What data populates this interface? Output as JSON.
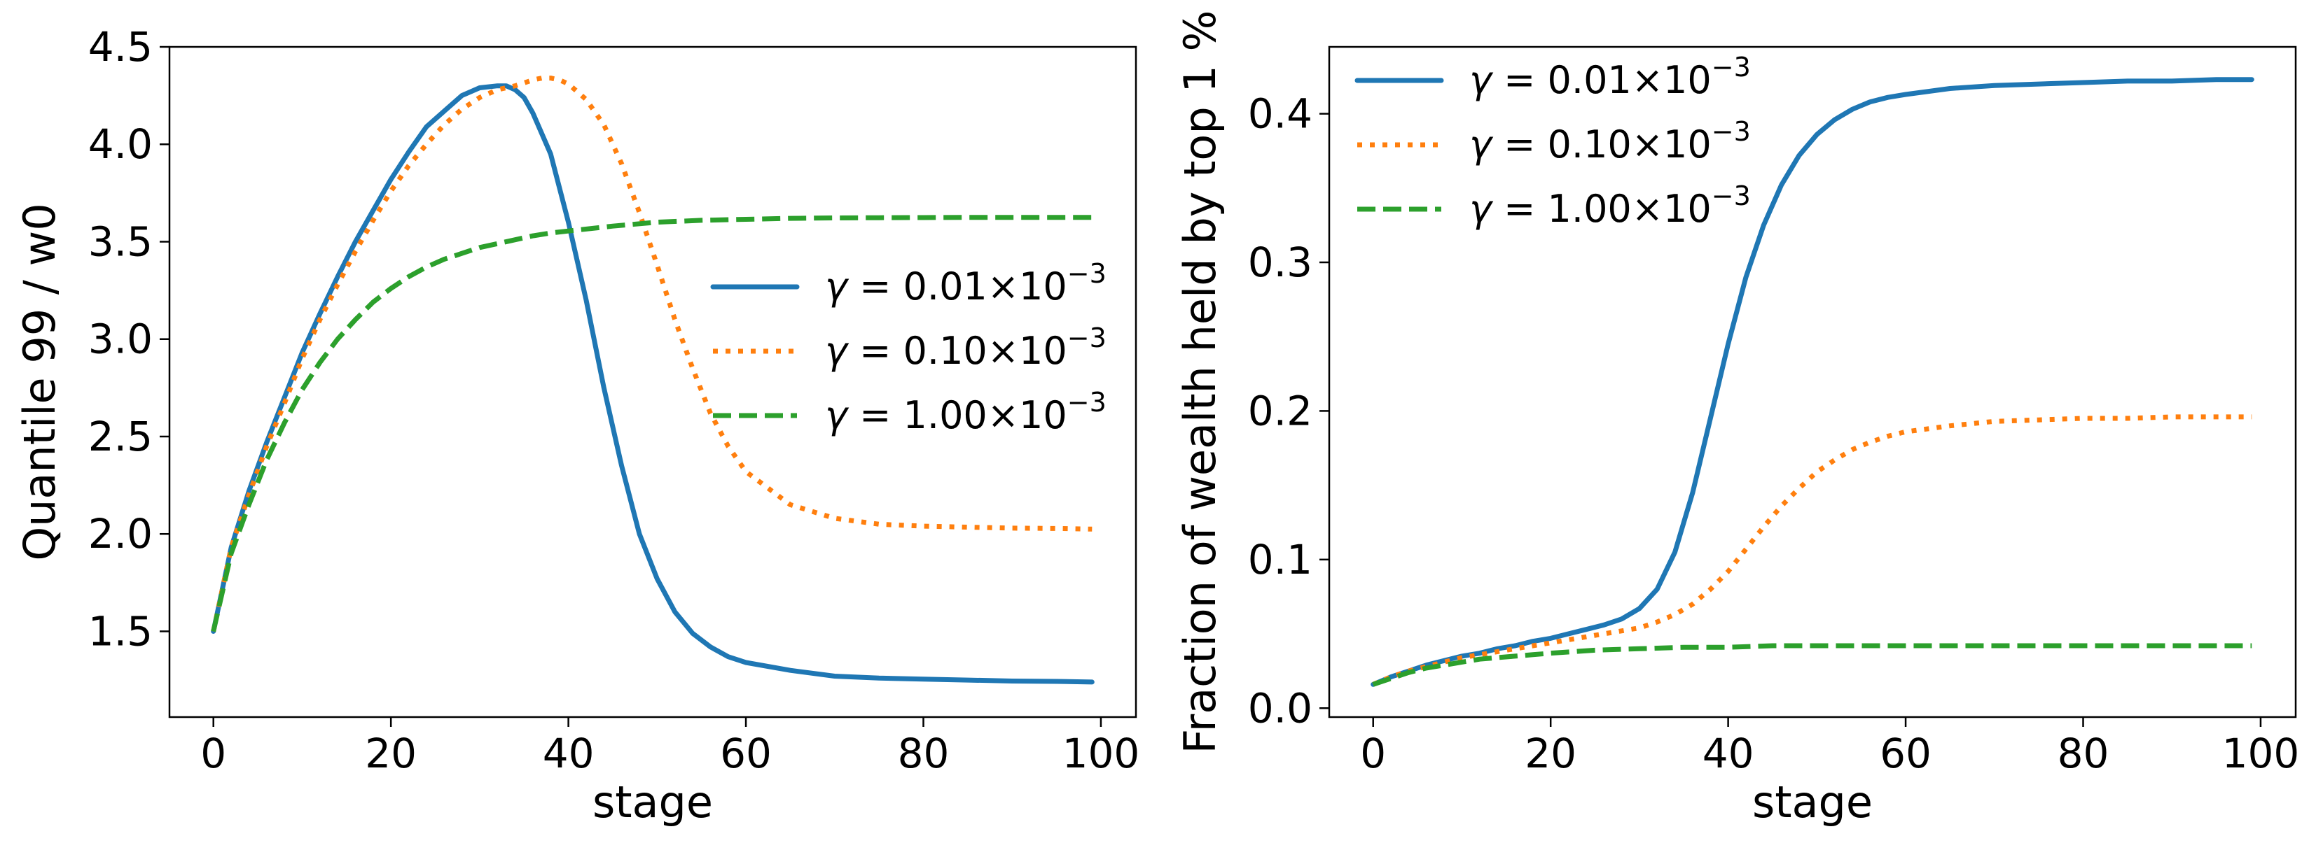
{
  "chart_data": [
    {
      "type": "line",
      "title": "",
      "xlabel": "stage",
      "ylabel": "Quantile 99 / w0",
      "xlim": [
        -4.95,
        103.95
      ],
      "ylim": [
        1.06,
        4.5
      ],
      "xticks": [
        0,
        20,
        40,
        60,
        80,
        100
      ],
      "xtick_labels": [
        "0",
        "20",
        "40",
        "60",
        "80",
        "100"
      ],
      "yticks": [
        1.5,
        2.0,
        2.5,
        3.0,
        3.5,
        4.0,
        4.5
      ],
      "ytick_labels": [
        "1.5",
        "2.0",
        "2.5",
        "3.0",
        "3.5",
        "4.0",
        "4.5"
      ],
      "legend_position": "center-right",
      "series": [
        {
          "name_prefix": "γ = 0.01×10",
          "name_exponent": "−3",
          "color": "#1f77b4",
          "style": "solid",
          "x": [
            0,
            2,
            4,
            6,
            8,
            10,
            12,
            14,
            16,
            18,
            20,
            22,
            24,
            26,
            28,
            30,
            32,
            33,
            34,
            35,
            36,
            38,
            40,
            42,
            44,
            46,
            48,
            50,
            52,
            54,
            56,
            58,
            60,
            65,
            70,
            75,
            80,
            85,
            90,
            95,
            99
          ],
          "y": [
            1.5,
            1.93,
            2.22,
            2.47,
            2.7,
            2.93,
            3.13,
            3.32,
            3.5,
            3.66,
            3.82,
            3.96,
            4.09,
            4.17,
            4.25,
            4.29,
            4.3,
            4.3,
            4.28,
            4.24,
            4.16,
            3.95,
            3.6,
            3.2,
            2.75,
            2.35,
            2.0,
            1.77,
            1.6,
            1.49,
            1.42,
            1.37,
            1.34,
            1.3,
            1.27,
            1.26,
            1.255,
            1.25,
            1.245,
            1.243,
            1.24
          ]
        },
        {
          "name_prefix": "γ = 0.10×10",
          "name_exponent": "−3",
          "color": "#ff7f0e",
          "style": "dotted",
          "x": [
            0,
            2,
            4,
            6,
            8,
            10,
            12,
            14,
            16,
            18,
            20,
            22,
            24,
            26,
            28,
            30,
            32,
            34,
            36,
            37,
            38,
            39,
            40,
            42,
            44,
            46,
            48,
            50,
            52,
            54,
            56,
            58,
            60,
            65,
            70,
            75,
            80,
            85,
            90,
            95,
            99
          ],
          "y": [
            1.5,
            1.93,
            2.2,
            2.45,
            2.67,
            2.9,
            3.1,
            3.28,
            3.45,
            3.61,
            3.76,
            3.89,
            4.0,
            4.1,
            4.18,
            4.24,
            4.28,
            4.3,
            4.33,
            4.34,
            4.34,
            4.33,
            4.31,
            4.23,
            4.1,
            3.9,
            3.65,
            3.38,
            3.1,
            2.85,
            2.62,
            2.45,
            2.32,
            2.15,
            2.08,
            2.05,
            2.04,
            2.035,
            2.03,
            2.028,
            2.025
          ]
        },
        {
          "name_prefix": "γ = 1.00×10",
          "name_exponent": "−3",
          "color": "#2ca02c",
          "style": "dashed",
          "x": [
            0,
            2,
            4,
            6,
            8,
            10,
            12,
            14,
            16,
            18,
            20,
            22,
            24,
            26,
            28,
            30,
            32,
            34,
            36,
            38,
            40,
            45,
            50,
            55,
            60,
            65,
            70,
            75,
            80,
            85,
            90,
            95,
            99
          ],
          "y": [
            1.5,
            1.9,
            2.15,
            2.38,
            2.57,
            2.74,
            2.88,
            3.0,
            3.1,
            3.19,
            3.26,
            3.32,
            3.37,
            3.41,
            3.44,
            3.47,
            3.49,
            3.51,
            3.53,
            3.545,
            3.555,
            3.58,
            3.6,
            3.61,
            3.615,
            3.62,
            3.622,
            3.623,
            3.624,
            3.625,
            3.625,
            3.625,
            3.625
          ]
        }
      ]
    },
    {
      "type": "line",
      "title": "",
      "xlabel": "stage",
      "ylabel": "Fraction of wealth held by top 1 %",
      "xlim": [
        -4.95,
        103.95
      ],
      "ylim": [
        -0.006,
        0.445
      ],
      "xticks": [
        0,
        20,
        40,
        60,
        80,
        100
      ],
      "xtick_labels": [
        "0",
        "20",
        "40",
        "60",
        "80",
        "100"
      ],
      "yticks": [
        0.0,
        0.1,
        0.2,
        0.3,
        0.4
      ],
      "ytick_labels": [
        "0.0",
        "0.1",
        "0.2",
        "0.3",
        "0.4"
      ],
      "legend_position": "upper-left",
      "series": [
        {
          "name_prefix": "γ = 0.01×10",
          "name_exponent": "−3",
          "color": "#1f77b4",
          "style": "solid",
          "x": [
            0,
            2,
            4,
            6,
            8,
            10,
            12,
            14,
            16,
            18,
            20,
            22,
            24,
            26,
            28,
            30,
            32,
            34,
            36,
            38,
            40,
            42,
            44,
            46,
            48,
            50,
            52,
            54,
            56,
            58,
            60,
            65,
            70,
            75,
            80,
            85,
            90,
            95,
            99
          ],
          "y": [
            0.016,
            0.021,
            0.025,
            0.029,
            0.032,
            0.035,
            0.037,
            0.04,
            0.042,
            0.045,
            0.047,
            0.05,
            0.053,
            0.056,
            0.06,
            0.067,
            0.08,
            0.105,
            0.145,
            0.195,
            0.245,
            0.29,
            0.325,
            0.352,
            0.372,
            0.386,
            0.396,
            0.403,
            0.408,
            0.411,
            0.413,
            0.417,
            0.419,
            0.42,
            0.421,
            0.422,
            0.422,
            0.423,
            0.423
          ]
        },
        {
          "name_prefix": "γ = 0.10×10",
          "name_exponent": "−3",
          "color": "#ff7f0e",
          "style": "dotted",
          "x": [
            0,
            2,
            4,
            6,
            8,
            10,
            12,
            14,
            16,
            18,
            20,
            22,
            24,
            26,
            28,
            30,
            32,
            34,
            36,
            38,
            40,
            42,
            44,
            46,
            48,
            50,
            52,
            54,
            56,
            58,
            60,
            65,
            70,
            75,
            80,
            85,
            90,
            95,
            99
          ],
          "y": [
            0.016,
            0.021,
            0.025,
            0.028,
            0.031,
            0.034,
            0.036,
            0.038,
            0.04,
            0.042,
            0.044,
            0.046,
            0.048,
            0.05,
            0.052,
            0.054,
            0.058,
            0.063,
            0.07,
            0.08,
            0.092,
            0.107,
            0.122,
            0.136,
            0.148,
            0.159,
            0.167,
            0.174,
            0.179,
            0.183,
            0.186,
            0.19,
            0.193,
            0.194,
            0.195,
            0.195,
            0.196,
            0.196,
            0.196
          ]
        },
        {
          "name_prefix": "γ = 1.00×10",
          "name_exponent": "−3",
          "color": "#2ca02c",
          "style": "dashed",
          "x": [
            0,
            2,
            4,
            6,
            8,
            10,
            12,
            14,
            16,
            18,
            20,
            25,
            30,
            35,
            40,
            45,
            50,
            55,
            60,
            65,
            70,
            75,
            80,
            85,
            90,
            95,
            99
          ],
          "y": [
            0.016,
            0.02,
            0.024,
            0.027,
            0.029,
            0.031,
            0.033,
            0.034,
            0.035,
            0.036,
            0.037,
            0.039,
            0.04,
            0.041,
            0.041,
            0.042,
            0.042,
            0.042,
            0.042,
            0.042,
            0.042,
            0.042,
            0.042,
            0.042,
            0.042,
            0.042,
            0.042
          ]
        }
      ]
    }
  ]
}
